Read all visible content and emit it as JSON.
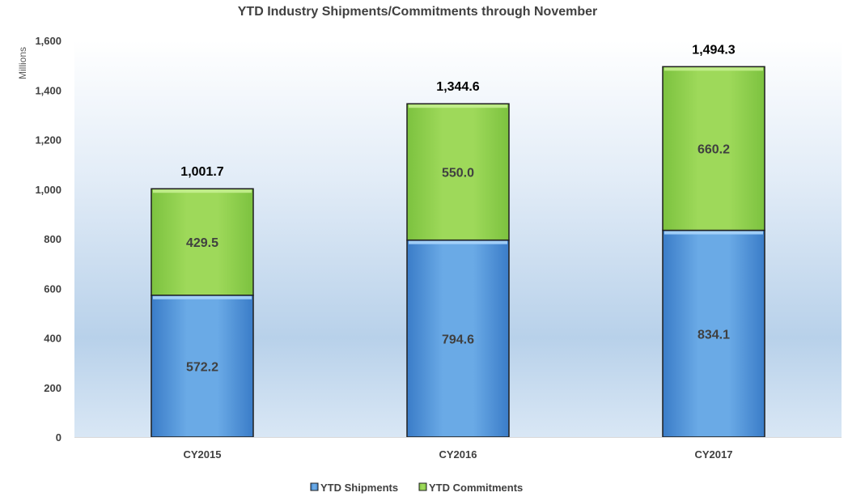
{
  "chart_data": {
    "type": "bar",
    "stacked": true,
    "title": "YTD Industry Shipments/Commitments through November",
    "xlabel": "",
    "ylabel": "Millions",
    "categories": [
      "CY2015",
      "CY2016",
      "CY2017"
    ],
    "series": [
      {
        "name": "YTD Shipments",
        "values": [
          572.2,
          794.6,
          834.1
        ],
        "labels": [
          "572.2",
          "794.6",
          "834.1"
        ],
        "color": "#5b9bd5"
      },
      {
        "name": "YTD Commitments",
        "values": [
          429.5,
          550.0,
          660.2
        ],
        "labels": [
          "429.5",
          "550.0",
          "660.2"
        ],
        "color": "#92d050"
      }
    ],
    "totals": [
      "1,001.7",
      "1,344.6",
      "1,494.3"
    ],
    "ylim": [
      0,
      1600
    ],
    "yticks": [
      0,
      200,
      400,
      600,
      800,
      1000,
      1200,
      1400,
      1600
    ],
    "ytick_labels": [
      "0",
      "200",
      "400",
      "600",
      "800",
      "1,000",
      "1,200",
      "1,400",
      "1,600"
    ],
    "grid": false,
    "legend_position": "bottom",
    "plot_background": "#c9ddf0"
  }
}
